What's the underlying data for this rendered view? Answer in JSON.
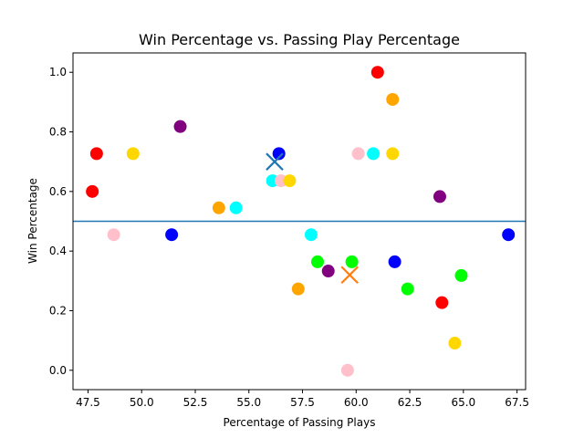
{
  "chart_data": {
    "type": "scatter",
    "title": "Win Percentage vs. Passing Play Percentage",
    "xlabel": "Percentage of Passing Plays",
    "ylabel": "Win Percentage",
    "xlim": [
      46.8,
      67.9
    ],
    "ylim": [
      -0.065,
      1.065
    ],
    "xticks": [
      47.5,
      50.0,
      52.5,
      55.0,
      57.5,
      60.0,
      62.5,
      65.0,
      67.5
    ],
    "yticks": [
      0.0,
      0.2,
      0.4,
      0.6,
      0.8,
      1.0
    ],
    "grid": false,
    "legend": "none",
    "reference_line": {
      "y": 0.5,
      "color": "#1f77b4"
    },
    "points": [
      {
        "x": 47.7,
        "y": 0.6,
        "color": "#ff0000"
      },
      {
        "x": 47.9,
        "y": 0.727,
        "color": "#ff0000"
      },
      {
        "x": 48.7,
        "y": 0.455,
        "color": "#ffc0cb"
      },
      {
        "x": 49.6,
        "y": 0.727,
        "color": "#ffd700"
      },
      {
        "x": 51.4,
        "y": 0.455,
        "color": "#0000ff"
      },
      {
        "x": 51.8,
        "y": 0.818,
        "color": "#800080"
      },
      {
        "x": 53.6,
        "y": 0.545,
        "color": "#ffa500"
      },
      {
        "x": 54.4,
        "y": 0.545,
        "color": "#00ffff"
      },
      {
        "x": 56.1,
        "y": 0.636,
        "color": "#00ffff"
      },
      {
        "x": 56.4,
        "y": 0.727,
        "color": "#0000ff"
      },
      {
        "x": 56.5,
        "y": 0.636,
        "color": "#ffc0cb"
      },
      {
        "x": 56.9,
        "y": 0.636,
        "color": "#ffd700"
      },
      {
        "x": 57.3,
        "y": 0.273,
        "color": "#ffa500"
      },
      {
        "x": 57.9,
        "y": 0.455,
        "color": "#00ffff"
      },
      {
        "x": 58.2,
        "y": 0.364,
        "color": "#00ff00"
      },
      {
        "x": 58.7,
        "y": 0.333,
        "color": "#800080"
      },
      {
        "x": 59.6,
        "y": 0.0,
        "color": "#ffc0cb"
      },
      {
        "x": 59.8,
        "y": 0.364,
        "color": "#00ff00"
      },
      {
        "x": 60.1,
        "y": 0.727,
        "color": "#ffc0cb"
      },
      {
        "x": 60.8,
        "y": 0.727,
        "color": "#00ffff"
      },
      {
        "x": 61.0,
        "y": 1.0,
        "color": "#ff0000"
      },
      {
        "x": 61.7,
        "y": 0.909,
        "color": "#ffa500"
      },
      {
        "x": 61.7,
        "y": 0.727,
        "color": "#ffd700"
      },
      {
        "x": 61.8,
        "y": 0.364,
        "color": "#0000ff"
      },
      {
        "x": 62.4,
        "y": 0.273,
        "color": "#00ff00"
      },
      {
        "x": 63.9,
        "y": 0.583,
        "color": "#800080"
      },
      {
        "x": 64.0,
        "y": 0.227,
        "color": "#ff0000"
      },
      {
        "x": 64.6,
        "y": 0.091,
        "color": "#ffd700"
      },
      {
        "x": 64.9,
        "y": 0.318,
        "color": "#00ff00"
      },
      {
        "x": 67.1,
        "y": 0.455,
        "color": "#0000ff"
      }
    ],
    "centroids": [
      {
        "x": 56.2,
        "y": 0.7,
        "color": "#1f77b4"
      },
      {
        "x": 59.7,
        "y": 0.32,
        "color": "#ff7f0e"
      }
    ]
  }
}
